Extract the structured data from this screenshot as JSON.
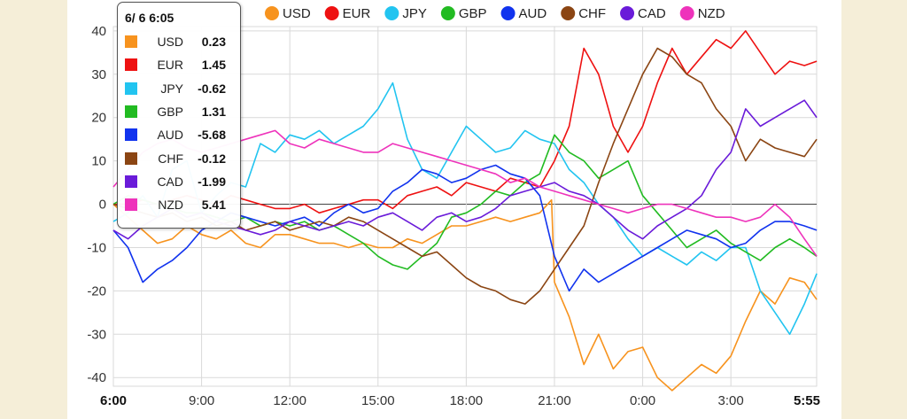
{
  "tooltip": {
    "title": "6/ 6 6:05",
    "rows": [
      {
        "name": "USD",
        "value": "0.23",
        "color": "#f7931e"
      },
      {
        "name": "EUR",
        "value": "1.45",
        "color": "#ee1111"
      },
      {
        "name": "JPY",
        "value": "-0.62",
        "color": "#22c4f0"
      },
      {
        "name": "GBP",
        "value": "1.31",
        "color": "#22bb22"
      },
      {
        "name": "AUD",
        "value": "-5.68",
        "color": "#1133ee"
      },
      {
        "name": "CHF",
        "value": "-0.12",
        "color": "#8b4513"
      },
      {
        "name": "CAD",
        "value": "-1.99",
        "color": "#6a1bd9"
      },
      {
        "name": "NZD",
        "value": "5.41",
        "color": "#ee33bb"
      }
    ]
  },
  "chart_data": {
    "type": "line",
    "title": "",
    "xlabel": "",
    "ylabel": "",
    "ylim": [
      -42,
      41
    ],
    "yticks": [
      "40",
      "30",
      "20",
      "10",
      "0",
      "-10",
      "-20",
      "-30",
      "-40"
    ],
    "ytick_values": [
      40,
      30,
      20,
      10,
      0,
      -10,
      -20,
      -30,
      -40
    ],
    "xticks": [
      "6:00",
      "9:00",
      "12:00",
      "15:00",
      "18:00",
      "21:00",
      "0:00",
      "3:00",
      "5:55"
    ],
    "xtick_hours": [
      0,
      3,
      6,
      9,
      12,
      15,
      18,
      21,
      23.917
    ],
    "x_unit": "hours since 6:00",
    "grid": true,
    "legend_position": "top",
    "series": [
      {
        "name": "USD",
        "color": "#f7931e",
        "x": [
          0,
          0.5,
          1,
          1.5,
          2,
          2.5,
          3,
          3.5,
          4,
          4.5,
          5,
          5.5,
          6,
          6.5,
          7,
          7.5,
          8,
          8.5,
          9,
          9.5,
          10,
          10.5,
          11,
          11.5,
          12,
          12.5,
          13,
          13.5,
          14,
          14.5,
          14.9,
          15,
          15.5,
          16,
          16.5,
          17,
          17.5,
          18,
          18.5,
          19,
          19.5,
          20,
          20.5,
          21,
          21.5,
          22,
          22.5,
          23,
          23.5,
          23.92
        ],
        "y": [
          0,
          -3,
          -6,
          -9,
          -8,
          -5,
          -7,
          -8,
          -6,
          -9,
          -10,
          -7,
          -7,
          -8,
          -9,
          -9,
          -10,
          -9,
          -10,
          -10,
          -8,
          -9,
          -7,
          -5,
          -5,
          -4,
          -3,
          -4,
          -3,
          -2,
          1,
          -18,
          -26,
          -37,
          -30,
          -38,
          -34,
          -33,
          -40,
          -43,
          -40,
          -37,
          -39,
          -35,
          -27,
          -20,
          -23,
          -17,
          -18,
          -22
        ]
      },
      {
        "name": "EUR",
        "color": "#ee1111",
        "x": [
          0,
          0.5,
          1,
          1.5,
          2,
          2.5,
          3,
          3.5,
          4,
          4.5,
          5,
          5.5,
          6,
          6.5,
          7,
          7.5,
          8,
          8.5,
          9,
          9.5,
          10,
          10.5,
          11,
          11.5,
          12,
          12.5,
          13,
          13.5,
          14,
          14.5,
          15,
          15.5,
          16,
          16.5,
          17,
          17.5,
          18,
          18.5,
          19,
          19.5,
          20,
          20.5,
          21,
          21.5,
          22,
          22.5,
          23,
          23.5,
          23.92
        ],
        "y": [
          0,
          0,
          1,
          0,
          1,
          2,
          1,
          0,
          2,
          1,
          0,
          -1,
          -1,
          0,
          -2,
          -1,
          0,
          1,
          1,
          -1,
          2,
          3,
          4,
          2,
          5,
          4,
          3,
          6,
          5,
          4,
          10,
          18,
          36,
          30,
          18,
          12,
          18,
          28,
          36,
          30,
          34,
          38,
          36,
          40,
          35,
          30,
          33,
          32,
          33
        ]
      },
      {
        "name": "JPY",
        "color": "#22c4f0",
        "x": [
          0,
          0.5,
          1,
          1.5,
          2,
          2.5,
          3,
          3.5,
          4,
          4.5,
          5,
          5.5,
          6,
          6.5,
          7,
          7.5,
          8,
          8.5,
          9,
          9.5,
          10,
          10.5,
          11,
          11.5,
          12,
          12.5,
          13,
          13.5,
          14,
          14.5,
          15,
          15.5,
          16,
          16.5,
          17,
          17.5,
          18,
          18.5,
          19,
          19.5,
          20,
          20.5,
          21,
          21.5,
          22,
          22.5,
          23,
          23.5,
          23.92
        ],
        "y": [
          -4,
          -2,
          2,
          -3,
          8,
          10,
          -2,
          2,
          5,
          4,
          14,
          12,
          16,
          15,
          17,
          14,
          16,
          18,
          22,
          28,
          15,
          8,
          6,
          12,
          18,
          15,
          12,
          13,
          17,
          15,
          14,
          8,
          5,
          0,
          -3,
          -8,
          -12,
          -10,
          -12,
          -14,
          -11,
          -13,
          -10,
          -10,
          -20,
          -25,
          -30,
          -23,
          -16
        ]
      },
      {
        "name": "GBP",
        "color": "#22bb22",
        "x": [
          0,
          0.5,
          1,
          1.5,
          2,
          2.5,
          3,
          3.5,
          4,
          4.5,
          5,
          5.5,
          6,
          6.5,
          7,
          7.5,
          8,
          8.5,
          9,
          9.5,
          10,
          10.5,
          11,
          11.5,
          12,
          12.5,
          13,
          13.5,
          14,
          14.5,
          15,
          15.5,
          16,
          16.5,
          17,
          17.5,
          18,
          18.5,
          19,
          19.5,
          20,
          20.5,
          21,
          21.5,
          22,
          22.5,
          23,
          23.5,
          23.92
        ],
        "y": [
          0,
          2,
          1,
          0,
          -1,
          -2,
          -2,
          -3,
          -4,
          -3,
          -5,
          -4,
          -5,
          -4,
          -6,
          -5,
          -7,
          -9,
          -12,
          -14,
          -15,
          -12,
          -9,
          -3,
          -2,
          0,
          3,
          2,
          5,
          7,
          16,
          12,
          10,
          6,
          8,
          10,
          2,
          -2,
          -6,
          -10,
          -8,
          -6,
          -9,
          -11,
          -13,
          -10,
          -8,
          -10,
          -12
        ]
      },
      {
        "name": "AUD",
        "color": "#1133ee",
        "x": [
          0,
          0.5,
          1,
          1.5,
          2,
          2.5,
          3,
          3.5,
          4,
          4.5,
          5,
          5.5,
          6,
          6.5,
          7,
          7.5,
          8,
          8.5,
          9,
          9.5,
          10,
          10.5,
          11,
          11.5,
          12,
          12.5,
          13,
          13.5,
          14,
          14.5,
          15,
          15.5,
          16,
          16.5,
          17,
          17.5,
          18,
          18.5,
          19,
          19.5,
          20,
          20.5,
          21,
          21.5,
          22,
          22.5,
          23,
          23.5,
          23.92
        ],
        "y": [
          -6,
          -10,
          -18,
          -15,
          -13,
          -10,
          -6,
          -4,
          -2,
          -3,
          -4,
          -5,
          -4,
          -3,
          -5,
          -2,
          0,
          -2,
          -1,
          3,
          5,
          8,
          7,
          5,
          6,
          8,
          9,
          7,
          6,
          2,
          -12,
          -20,
          -15,
          -18,
          -16,
          -14,
          -12,
          -10,
          -8,
          -6,
          -7,
          -8,
          -10,
          -9,
          -6,
          -4,
          -4,
          -5,
          -6
        ]
      },
      {
        "name": "CHF",
        "color": "#8b4513",
        "x": [
          0,
          0.5,
          1,
          1.5,
          2,
          2.5,
          3,
          3.5,
          4,
          4.5,
          5,
          5.5,
          6,
          6.5,
          7,
          7.5,
          8,
          8.5,
          9,
          9.5,
          10,
          10.5,
          11,
          11.5,
          12,
          12.5,
          13,
          13.5,
          14,
          14.5,
          15,
          15.5,
          16,
          16.5,
          17,
          17.5,
          18,
          18.5,
          19,
          19.5,
          20,
          20.5,
          21,
          21.5,
          22,
          22.5,
          23,
          23.5,
          23.92
        ],
        "y": [
          0,
          -1,
          -2,
          -3,
          -2,
          -4,
          -3,
          -5,
          -4,
          -6,
          -5,
          -4,
          -6,
          -5,
          -4,
          -5,
          -3,
          -4,
          -6,
          -8,
          -10,
          -12,
          -11,
          -14,
          -17,
          -19,
          -20,
          -22,
          -23,
          -20,
          -15,
          -10,
          -5,
          5,
          14,
          22,
          30,
          36,
          34,
          30,
          28,
          22,
          18,
          10,
          15,
          13,
          12,
          11,
          15
        ]
      },
      {
        "name": "CAD",
        "color": "#6a1bd9",
        "x": [
          0,
          0.5,
          1,
          1.5,
          2,
          2.5,
          3,
          3.5,
          4,
          4.5,
          5,
          5.5,
          6,
          6.5,
          7,
          7.5,
          8,
          8.5,
          9,
          9.5,
          10,
          10.5,
          11,
          11.5,
          12,
          12.5,
          13,
          13.5,
          14,
          14.5,
          15,
          15.5,
          16,
          16.5,
          17,
          17.5,
          18,
          18.5,
          19,
          19.5,
          20,
          20.5,
          21,
          21.5,
          22,
          22.5,
          23,
          23.5,
          23.92
        ],
        "y": [
          -6,
          -8,
          -5,
          -3,
          -1,
          -3,
          -2,
          -4,
          -5,
          -6,
          -7,
          -6,
          -4,
          -5,
          -6,
          -5,
          -4,
          -5,
          -3,
          -2,
          -4,
          -6,
          -3,
          -2,
          -4,
          -3,
          -1,
          2,
          3,
          4,
          5,
          3,
          2,
          0,
          -3,
          -6,
          -8,
          -5,
          -3,
          -1,
          2,
          8,
          12,
          22,
          18,
          20,
          22,
          24,
          20
        ]
      },
      {
        "name": "NZD",
        "color": "#ee33bb",
        "x": [
          0,
          0.5,
          1,
          1.5,
          2,
          2.5,
          3,
          3.5,
          4,
          4.5,
          5,
          5.5,
          6,
          6.5,
          7,
          7.5,
          8,
          8.5,
          9,
          9.5,
          10,
          10.5,
          11,
          11.5,
          12,
          12.5,
          13,
          13.5,
          14,
          14.5,
          15,
          15.5,
          16,
          16.5,
          17,
          17.5,
          18,
          18.5,
          19,
          19.5,
          20,
          20.5,
          21,
          21.5,
          22,
          22.5,
          23,
          23.5,
          23.92
        ],
        "y": [
          4,
          8,
          12,
          14,
          15,
          13,
          12,
          13,
          14,
          15,
          16,
          17,
          14,
          13,
          15,
          14,
          13,
          12,
          12,
          14,
          13,
          12,
          11,
          10,
          9,
          8,
          7,
          5,
          6,
          4,
          3,
          2,
          1,
          0,
          -1,
          -2,
          -1,
          0,
          0,
          -1,
          -2,
          -3,
          -3,
          -4,
          -3,
          0,
          -3,
          -8,
          -12
        ]
      }
    ]
  }
}
